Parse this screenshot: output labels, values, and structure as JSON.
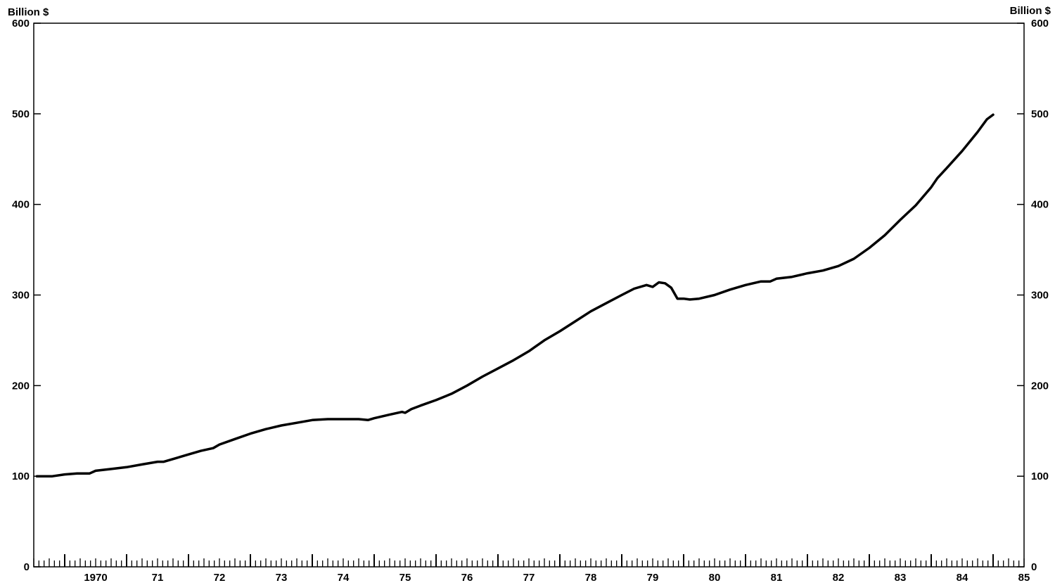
{
  "chart_data": {
    "type": "line",
    "title": "",
    "xlabel": "",
    "ylabel": "Billion $",
    "ylabel_right": "Billion $",
    "ylim": [
      0,
      600
    ],
    "xlim": [
      1969.5,
      1985.5
    ],
    "y_ticks": [
      0,
      100,
      200,
      300,
      400,
      500,
      600
    ],
    "y_tick_labels": [
      "0",
      "100",
      "200",
      "300",
      "400",
      "500",
      "600"
    ],
    "x_ticks": [
      1970,
      1971,
      1972,
      1973,
      1974,
      1975,
      1976,
      1977,
      1978,
      1979,
      1980,
      1981,
      1982,
      1983,
      1984,
      1985
    ],
    "x_tick_labels": [
      "1970",
      "71",
      "72",
      "73",
      "74",
      "75",
      "76",
      "77",
      "78",
      "79",
      "80",
      "81",
      "82",
      "83",
      "84",
      "85"
    ],
    "grid": false,
    "legend": "none",
    "series": [
      {
        "color": "#000000",
        "x": [
          1969.55,
          1969.8,
          1970.0,
          1970.2,
          1970.4,
          1970.5,
          1970.75,
          1971.0,
          1971.25,
          1971.5,
          1971.6,
          1971.8,
          1972.0,
          1972.2,
          1972.4,
          1972.5,
          1972.75,
          1973.0,
          1973.25,
          1973.5,
          1973.75,
          1974.0,
          1974.25,
          1974.5,
          1974.75,
          1974.9,
          1975.0,
          1975.25,
          1975.45,
          1975.5,
          1975.6,
          1975.75,
          1976.0,
          1976.25,
          1976.5,
          1976.75,
          1977.0,
          1977.25,
          1977.5,
          1977.75,
          1978.0,
          1978.25,
          1978.5,
          1978.75,
          1979.0,
          1979.2,
          1979.4,
          1979.5,
          1979.6,
          1979.7,
          1979.8,
          1979.9,
          1980.0,
          1980.1,
          1980.25,
          1980.5,
          1980.75,
          1981.0,
          1981.25,
          1981.4,
          1981.5,
          1981.75,
          1982.0,
          1982.25,
          1982.5,
          1982.75,
          1983.0,
          1983.25,
          1983.5,
          1983.75,
          1984.0,
          1984.1,
          1984.25,
          1984.5,
          1984.75,
          1984.9,
          1985.0
        ],
        "values": [
          100,
          100,
          102,
          103,
          103,
          106,
          108,
          110,
          113,
          116,
          116,
          120,
          124,
          128,
          131,
          135,
          141,
          147,
          152,
          156,
          159,
          162,
          163,
          163,
          163,
          162,
          164,
          168,
          171,
          170,
          174,
          178,
          184,
          191,
          200,
          210,
          219,
          228,
          238,
          250,
          260,
          271,
          282,
          291,
          300,
          307,
          311,
          309,
          314,
          313,
          308,
          296,
          296,
          295,
          296,
          300,
          306,
          311,
          315,
          315,
          318,
          320,
          324,
          327,
          332,
          340,
          352,
          366,
          383,
          399,
          419,
          429,
          440,
          459,
          480,
          494,
          499
        ]
      }
    ]
  }
}
